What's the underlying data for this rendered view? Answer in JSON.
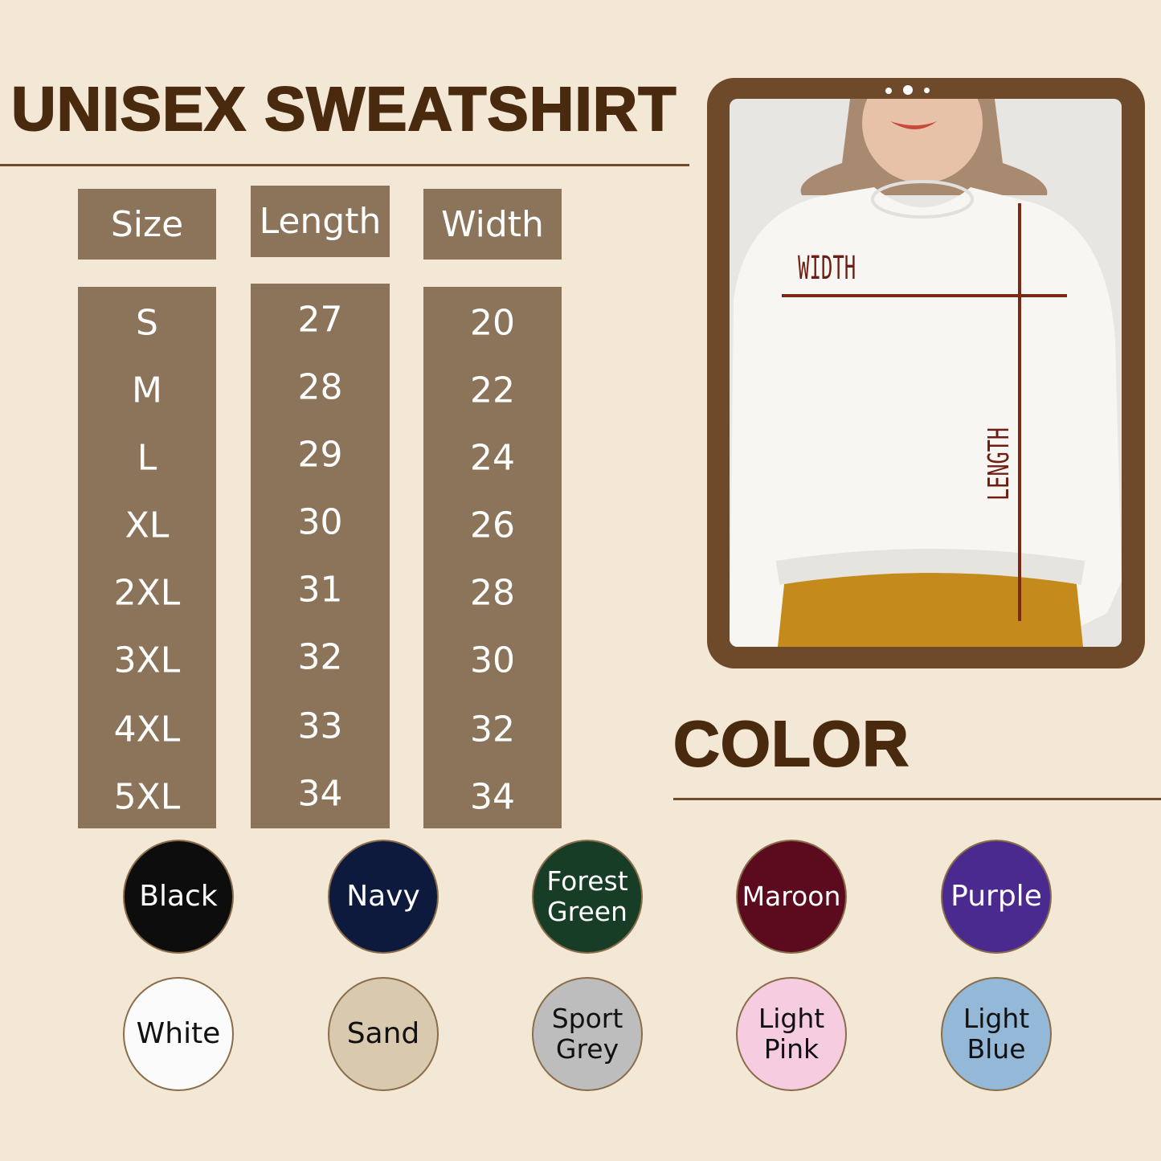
{
  "title": "UNISEX SWEATSHIRT",
  "size_table": {
    "headers": [
      "Size",
      "Length",
      "Width"
    ],
    "sizes": [
      "S",
      "M",
      "L",
      "XL",
      "2XL",
      "3XL",
      "4XL",
      "5XL"
    ],
    "lengths": [
      "27",
      "28",
      "29",
      "30",
      "31",
      "32",
      "33",
      "34"
    ],
    "widths": [
      "20",
      "22",
      "24",
      "26",
      "28",
      "30",
      "32",
      "34"
    ]
  },
  "photo": {
    "width_label": "WIDTH",
    "length_label": "LENGTH"
  },
  "color_title": "COLOR",
  "colors": [
    {
      "name": "Black",
      "lines": [
        "Black"
      ],
      "hex": "#0d0d0d",
      "text": "#ffffff"
    },
    {
      "name": "Navy",
      "lines": [
        "Navy"
      ],
      "hex": "#0d1a3d",
      "text": "#ffffff"
    },
    {
      "name": "Forest Green",
      "lines": [
        "Forest",
        "Green"
      ],
      "hex": "#173d27",
      "text": "#ffffff"
    },
    {
      "name": "Maroon",
      "lines": [
        "Maroon"
      ],
      "hex": "#5c0a1e",
      "text": "#ffffff"
    },
    {
      "name": "Purple",
      "lines": [
        "Purple"
      ],
      "hex": "#4a2a8e",
      "text": "#ffffff"
    },
    {
      "name": "White",
      "lines": [
        "White"
      ],
      "hex": "#fbfbfb",
      "text": "#111111"
    },
    {
      "name": "Sand",
      "lines": [
        "Sand"
      ],
      "hex": "#d9c9ae",
      "text": "#111111"
    },
    {
      "name": "Sport Grey",
      "lines": [
        "Sport",
        "Grey"
      ],
      "hex": "#bdbdbd",
      "text": "#111111"
    },
    {
      "name": "Light Pink",
      "lines": [
        "Light",
        "Pink"
      ],
      "hex": "#f6cde0",
      "text": "#111111"
    },
    {
      "name": "Light Blue",
      "lines": [
        "Light",
        "Blue"
      ],
      "hex": "#93b8d8",
      "text": "#111111"
    }
  ]
}
